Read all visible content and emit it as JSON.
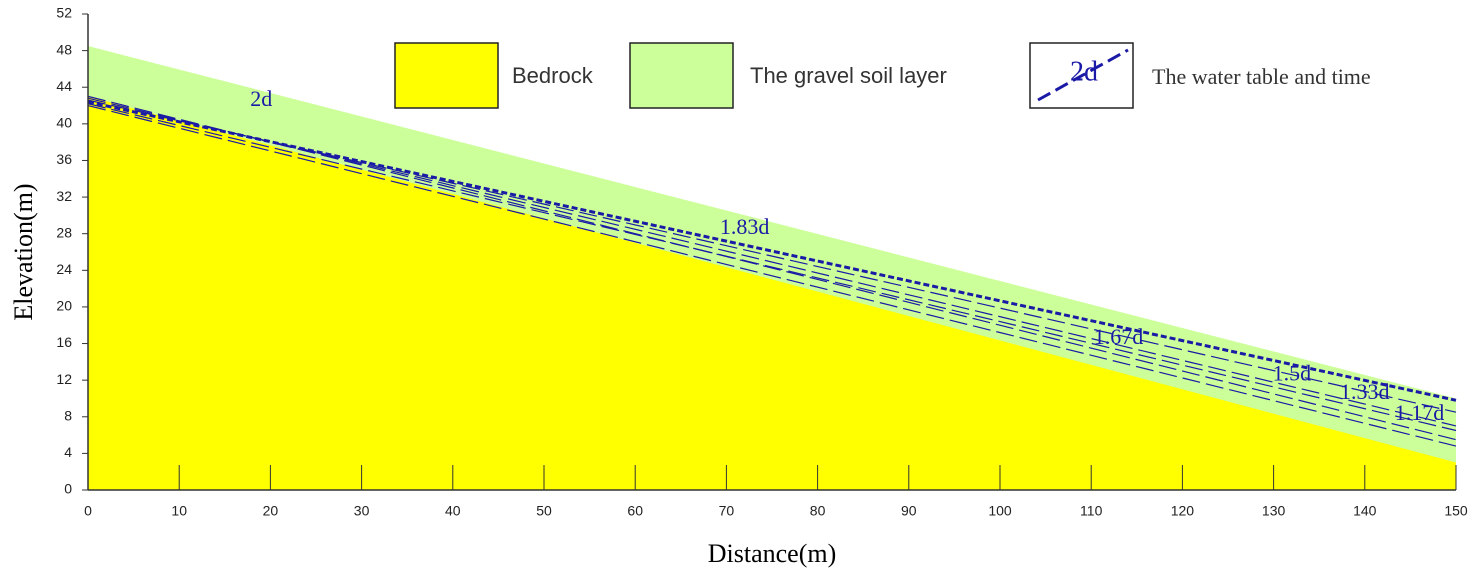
{
  "chart_data": {
    "type": "area",
    "xlabel": "Distance(m)",
    "ylabel": "Elevation(m)",
    "x": [
      0,
      150
    ],
    "xlim": [
      0,
      150
    ],
    "xticks": [
      0,
      10,
      20,
      30,
      40,
      50,
      60,
      70,
      80,
      90,
      100,
      110,
      120,
      130,
      140,
      150
    ],
    "ylim": [
      0,
      52
    ],
    "yticks": [
      0,
      4,
      8,
      12,
      16,
      20,
      24,
      28,
      32,
      36,
      40,
      44,
      48,
      52
    ],
    "series": [
      {
        "name": "The gravel soil layer",
        "color": "#ccff99",
        "values": [
          48.5,
          10
        ]
      },
      {
        "name": "Bedrock",
        "color": "#ffff00",
        "values": [
          43,
          3
        ]
      }
    ],
    "water_table_legend": "The water table and time",
    "water_table_color": "#1a1aa6",
    "water_tables": [
      {
        "label": "2d",
        "x": [
          0,
          150
        ],
        "values": [
          43,
          5.5
        ],
        "label_x": 19,
        "label_y": 42.5
      },
      {
        "label": "1.83d",
        "x": [
          0,
          150
        ],
        "values": [
          42.8,
          7
        ],
        "label_x": 72,
        "label_y": 28.5
      },
      {
        "label": "1.67d",
        "x": [
          0,
          150
        ],
        "values": [
          42.6,
          8.5
        ],
        "label_x": 113,
        "label_y": 16.5
      },
      {
        "label": "1.5d",
        "x": [
          0,
          150
        ],
        "values": [
          42.4,
          9.8
        ],
        "label_x": 132,
        "label_y": 12.5
      },
      {
        "label": "1.33d",
        "x": [
          0,
          150
        ],
        "values": [
          42.2,
          6.5
        ],
        "label_x": 140,
        "label_y": 10.5
      },
      {
        "label": "1.17d",
        "x": [
          0,
          150
        ],
        "values": [
          42,
          4.8
        ],
        "label_x": 146,
        "label_y": 8.2
      }
    ]
  }
}
